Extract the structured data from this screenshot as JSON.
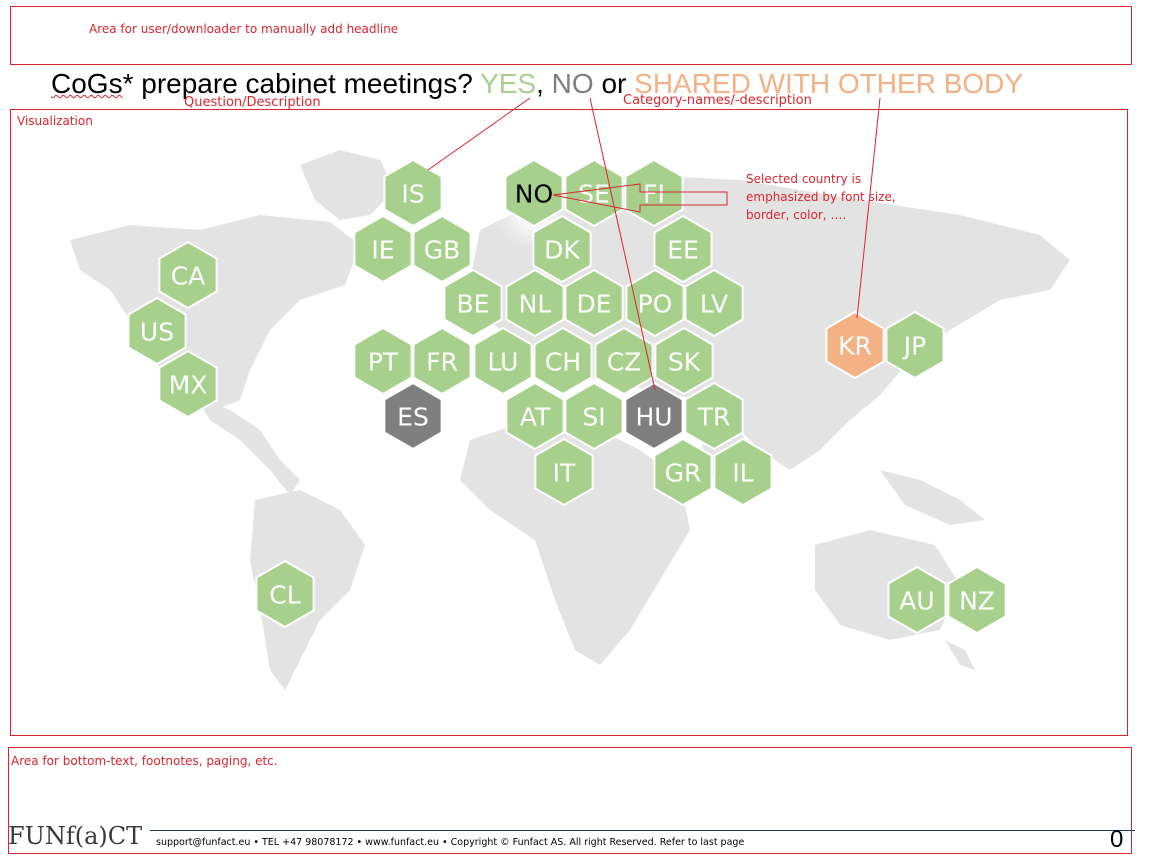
{
  "headline": {
    "note": "Area for user/downloader to manually add headline"
  },
  "title": {
    "prefix_marked": "CoGs",
    "prefix_rest": "* prepare cabinet meetings? ",
    "yes": "YES",
    "comma": ", ",
    "no": "NO",
    "or": " or ",
    "shared": "SHARED WITH OTHER BODY"
  },
  "labels": {
    "question": "Question/Description",
    "categories": "Category-names/-description",
    "visualization": "Visualization",
    "annotation": "Selected country is emphasized by font size, border, color, ….",
    "bottom": "Area for bottom-text, footnotes, paging, etc."
  },
  "footer": {
    "brand": "FUNf(a)CT",
    "text": "support@funfact.eu  •  TEL +47 98078172  •  www.funfact.eu  •  Copyright ©  Funfact AS. All right Reserved. Refer to last page",
    "page_number": "0"
  },
  "colors": {
    "yes": "#a8d08d",
    "no": "#7f7f7f",
    "shared": "#f4b183",
    "map": "#e3e3e3",
    "annotation": "#d9262e"
  },
  "selected_country": "NO",
  "countries": [
    {
      "code": "IS",
      "category": "yes"
    },
    {
      "code": "NO",
      "category": "yes"
    },
    {
      "code": "SE",
      "category": "yes"
    },
    {
      "code": "FI",
      "category": "yes"
    },
    {
      "code": "IE",
      "category": "yes"
    },
    {
      "code": "GB",
      "category": "yes"
    },
    {
      "code": "DK",
      "category": "yes"
    },
    {
      "code": "EE",
      "category": "yes"
    },
    {
      "code": "CA",
      "category": "yes"
    },
    {
      "code": "BE",
      "category": "yes"
    },
    {
      "code": "NL",
      "category": "yes"
    },
    {
      "code": "DE",
      "category": "yes"
    },
    {
      "code": "PO",
      "category": "yes"
    },
    {
      "code": "LV",
      "category": "yes"
    },
    {
      "code": "US",
      "category": "yes"
    },
    {
      "code": "KR",
      "category": "shared"
    },
    {
      "code": "JP",
      "category": "yes"
    },
    {
      "code": "PT",
      "category": "yes"
    },
    {
      "code": "FR",
      "category": "yes"
    },
    {
      "code": "LU",
      "category": "yes"
    },
    {
      "code": "CH",
      "category": "yes"
    },
    {
      "code": "CZ",
      "category": "yes"
    },
    {
      "code": "SK",
      "category": "yes"
    },
    {
      "code": "MX",
      "category": "yes"
    },
    {
      "code": "ES",
      "category": "no"
    },
    {
      "code": "AT",
      "category": "yes"
    },
    {
      "code": "SI",
      "category": "yes"
    },
    {
      "code": "HU",
      "category": "no"
    },
    {
      "code": "TR",
      "category": "yes"
    },
    {
      "code": "IT",
      "category": "yes"
    },
    {
      "code": "GR",
      "category": "yes"
    },
    {
      "code": "IL",
      "category": "yes"
    },
    {
      "code": "CL",
      "category": "yes"
    },
    {
      "code": "AU",
      "category": "yes"
    },
    {
      "code": "NZ",
      "category": "yes"
    }
  ]
}
